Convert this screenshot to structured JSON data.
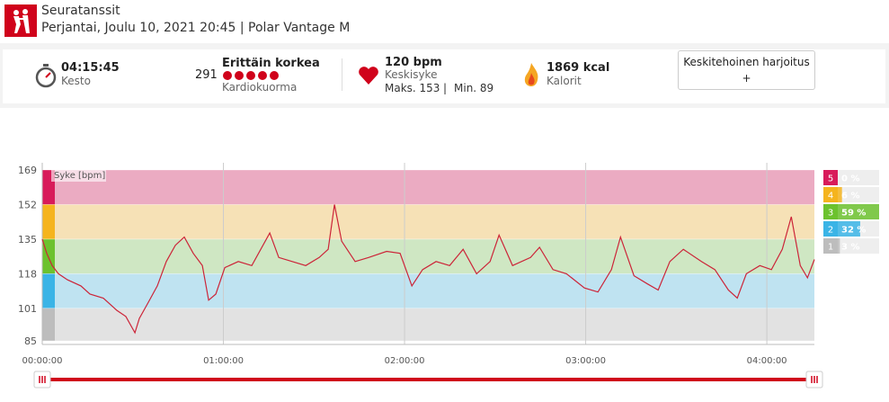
{
  "header": {
    "title": "Seuratanssit",
    "subtitle": "Perjantai, Joulu 10, 2021 20:45 | Polar Vantage M"
  },
  "summary": {
    "duration": {
      "value": "04:15:45",
      "label": "Kesto"
    },
    "load": {
      "value": "291",
      "level": "Erittäin korkea",
      "label": "Kardiokuorma"
    },
    "heart_rate": {
      "value": "120 bpm",
      "label": "Keskisyke",
      "max": "Maks. 153",
      "separator": "|",
      "min": "Min. 89"
    },
    "calories": {
      "value": "1869 kcal",
      "label": "Kalorit"
    },
    "button": {
      "label": "Keskitehoinen harjoitus",
      "plus": "+"
    }
  },
  "chart_data": {
    "type": "line",
    "y_label": "Syke [bpm]",
    "ylim": [
      85,
      169
    ],
    "yticks": [
      85,
      101,
      118,
      135,
      152,
      169
    ],
    "xlim": [
      0,
      15345
    ],
    "xticks": [
      {
        "value": 0,
        "label": "00:00:00"
      },
      {
        "value": 3600,
        "label": "01:00:00"
      },
      {
        "value": 7200,
        "label": "02:00:00"
      },
      {
        "value": 10800,
        "label": "03:00:00"
      },
      {
        "value": 14400,
        "label": "04:00:00"
      }
    ],
    "grid": true,
    "x": [
      0,
      89,
      197,
      322,
      500,
      768,
      947,
      1215,
      1483,
      1662,
      1841,
      1930,
      2109,
      2287,
      2466,
      2645,
      2823,
      3002,
      3181,
      3306,
      3449,
      3628,
      3896,
      4164,
      4521,
      4700,
      4968,
      5236,
      5504,
      5683,
      5808,
      5951,
      6219,
      6487,
      6844,
      7112,
      7345,
      7559,
      7827,
      8095,
      8363,
      8631,
      8899,
      9078,
      9346,
      9703,
      9882,
      10150,
      10418,
      10776,
      11044,
      11312,
      11491,
      11759,
      12027,
      12241,
      12473,
      12741,
      13099,
      13367,
      13635,
      13813,
      13992,
      14260,
      14492,
      14707,
      14886,
      15064,
      15207,
      15345
    ],
    "series": [
      {
        "name": "Syke",
        "color": "#cc2438",
        "values": [
          135,
          128,
          122,
          118,
          115,
          112,
          108,
          106,
          100,
          97,
          89,
          96,
          104,
          112,
          124,
          132,
          136,
          128,
          122,
          105,
          108,
          121,
          124,
          122,
          138,
          126,
          124,
          122,
          126,
          130,
          152,
          134,
          124,
          126,
          129,
          128,
          112,
          120,
          124,
          122,
          130,
          118,
          124,
          137,
          122,
          126,
          131,
          120,
          118,
          111,
          109,
          120,
          136,
          117,
          113,
          110,
          124,
          130,
          124,
          120,
          110,
          106,
          118,
          122,
          120,
          130,
          146,
          122,
          116,
          125
        ]
      }
    ],
    "zones": {
      "names": [
        "5",
        "4",
        "3",
        "2",
        "1"
      ],
      "lower": [
        152,
        135,
        118,
        101,
        85
      ],
      "upper": [
        169,
        152,
        135,
        118,
        101
      ],
      "percents": [
        0,
        6,
        59,
        32,
        3
      ],
      "percent_labels": [
        "0 %",
        "6 %",
        "59 %",
        "32 %",
        "3 %"
      ],
      "colors": [
        "#d81b5a",
        "#f5b41e",
        "#6cc22e",
        "#3ab4e6",
        "#bdbdbd"
      ],
      "band_colors": [
        "#ebabc2",
        "#f6e1b6",
        "#cfe7c3",
        "#bfe3f1",
        "#e2e2e2"
      ]
    }
  }
}
